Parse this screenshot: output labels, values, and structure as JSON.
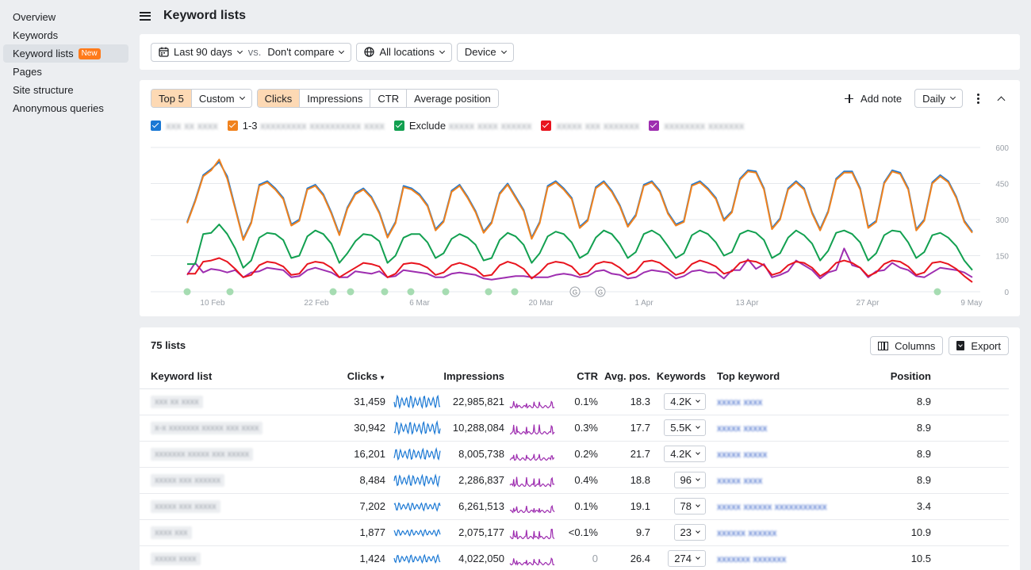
{
  "sidebar": {
    "items": [
      {
        "label": "Overview"
      },
      {
        "label": "Keywords"
      },
      {
        "label": "Keyword lists",
        "badge": "New",
        "active": true
      },
      {
        "label": "Pages"
      },
      {
        "label": "Site structure"
      },
      {
        "label": "Anonymous queries"
      }
    ]
  },
  "header": {
    "title": "Keyword lists"
  },
  "filters": {
    "date_range": "Last 90 days",
    "vs_label": "vs.",
    "compare": "Don't compare",
    "locations": "All locations",
    "device": "Device"
  },
  "chart_toolbar": {
    "top5": "Top 5",
    "custom": "Custom",
    "metrics": [
      "Clicks",
      "Impressions",
      "CTR",
      "Average position"
    ],
    "add_note": "Add note",
    "granularity": "Daily"
  },
  "legend": [
    {
      "name": "Exclude",
      "color": "#12a050"
    }
  ],
  "colors": {
    "blue": "#1a78d4",
    "orange": "#f0821e",
    "green": "#12a050",
    "red": "#e8141e",
    "purple": "#9e2eb0",
    "accent_soft": "#fdd9b4"
  },
  "chart_data": {
    "type": "line",
    "x_tick_labels": [
      "10 Feb",
      "22 Feb",
      "6 Mar",
      "20 Mar",
      "1 Apr",
      "13 Apr",
      "27 Apr",
      "9 May"
    ],
    "y_tick_labels": [
      "0",
      "150",
      "300",
      "450",
      "600"
    ],
    "ylim": [
      0,
      600
    ],
    "grid": true,
    "series": [
      {
        "color": "#1a78d4",
        "values": [
          290,
          380,
          485,
          510,
          540,
          480,
          350,
          220,
          290,
          445,
          460,
          430,
          390,
          280,
          300,
          430,
          445,
          405,
          330,
          240,
          350,
          410,
          430,
          395,
          330,
          230,
          290,
          440,
          430,
          405,
          360,
          260,
          295,
          420,
          445,
          395,
          335,
          250,
          290,
          410,
          450,
          395,
          340,
          225,
          290,
          440,
          460,
          430,
          390,
          270,
          300,
          435,
          460,
          420,
          360,
          275,
          320,
          445,
          460,
          420,
          330,
          280,
          295,
          445,
          460,
          430,
          390,
          300,
          335,
          470,
          505,
          500,
          430,
          265,
          305,
          430,
          460,
          430,
          330,
          260,
          335,
          470,
          500,
          500,
          430,
          270,
          295,
          455,
          505,
          495,
          430,
          260,
          300,
          455,
          485,
          460,
          395,
          295,
          250
        ]
      },
      {
        "color": "#f0821e",
        "values": [
          285,
          375,
          480,
          505,
          550,
          470,
          345,
          215,
          285,
          440,
          455,
          425,
          385,
          275,
          295,
          425,
          440,
          400,
          325,
          235,
          345,
          405,
          425,
          390,
          325,
          225,
          285,
          435,
          425,
          400,
          355,
          255,
          290,
          415,
          440,
          390,
          330,
          245,
          285,
          405,
          445,
          390,
          335,
          220,
          285,
          435,
          455,
          425,
          385,
          265,
          295,
          430,
          455,
          415,
          355,
          270,
          315,
          440,
          455,
          415,
          325,
          275,
          290,
          440,
          455,
          425,
          385,
          295,
          330,
          465,
          500,
          495,
          425,
          260,
          300,
          425,
          455,
          425,
          325,
          255,
          330,
          465,
          495,
          495,
          425,
          265,
          290,
          450,
          500,
          490,
          425,
          255,
          295,
          450,
          480,
          455,
          390,
          290,
          245
        ]
      },
      {
        "color": "#12a050",
        "values": [
          115,
          115,
          240,
          245,
          280,
          240,
          180,
          100,
          130,
          225,
          245,
          240,
          215,
          140,
          150,
          230,
          255,
          240,
          200,
          120,
          160,
          210,
          240,
          235,
          210,
          120,
          150,
          225,
          240,
          240,
          205,
          140,
          160,
          220,
          240,
          225,
          195,
          130,
          140,
          215,
          245,
          230,
          195,
          120,
          160,
          230,
          250,
          240,
          205,
          140,
          160,
          225,
          255,
          240,
          200,
          140,
          165,
          240,
          255,
          235,
          190,
          140,
          160,
          235,
          255,
          240,
          205,
          150,
          165,
          240,
          255,
          245,
          215,
          140,
          160,
          225,
          255,
          235,
          200,
          130,
          170,
          245,
          255,
          240,
          205,
          130,
          160,
          235,
          255,
          250,
          205,
          140,
          165,
          235,
          245,
          225,
          190,
          130,
          90
        ]
      },
      {
        "color": "#e8141e",
        "values": [
          75,
          75,
          125,
          130,
          140,
          125,
          95,
          60,
          70,
          110,
          125,
          120,
          105,
          70,
          75,
          115,
          125,
          120,
          100,
          60,
          80,
          100,
          120,
          115,
          105,
          60,
          75,
          115,
          120,
          115,
          100,
          70,
          80,
          110,
          120,
          110,
          95,
          65,
          70,
          110,
          125,
          115,
          95,
          55,
          80,
          115,
          125,
          120,
          105,
          70,
          80,
          115,
          125,
          120,
          100,
          70,
          85,
          125,
          130,
          120,
          95,
          70,
          80,
          115,
          130,
          120,
          105,
          75,
          85,
          120,
          130,
          125,
          110,
          70,
          80,
          110,
          125,
          120,
          100,
          65,
          85,
          120,
          130,
          120,
          100,
          65,
          80,
          115,
          130,
          125,
          105,
          70,
          80,
          120,
          125,
          115,
          95,
          65,
          40
        ]
      },
      {
        "color": "#9e2eb0",
        "values": [
          70,
          120,
          80,
          95,
          90,
          80,
          90,
          60,
          80,
          85,
          100,
          95,
          90,
          60,
          65,
          90,
          100,
          90,
          80,
          60,
          60,
          85,
          80,
          75,
          85,
          60,
          65,
          90,
          85,
          80,
          75,
          60,
          60,
          75,
          80,
          75,
          70,
          55,
          50,
          55,
          60,
          65,
          65,
          60,
          60,
          60,
          70,
          75,
          70,
          60,
          65,
          85,
          90,
          75,
          70,
          55,
          60,
          80,
          90,
          85,
          80,
          55,
          65,
          85,
          90,
          80,
          80,
          55,
          90,
          90,
          135,
          95,
          115,
          60,
          70,
          85,
          130,
          110,
          90,
          55,
          80,
          90,
          180,
          110,
          100,
          60,
          85,
          90,
          120,
          100,
          90,
          65,
          60,
          80,
          100,
          95,
          90,
          80,
          60
        ]
      }
    ]
  },
  "annotation_markers": [
    {
      "label": "G"
    },
    {
      "label": "G"
    }
  ],
  "table": {
    "count_label": "75 lists",
    "columns_button": "Columns",
    "export_button": "Export",
    "headers": {
      "list": "Keyword list",
      "clicks": "Clicks",
      "impressions": "Impressions",
      "ctr": "CTR",
      "avg_pos": "Avg. pos.",
      "keywords": "Keywords",
      "top_keyword": "Top keyword",
      "position": "Position"
    },
    "rows": [
      {
        "list_name": "",
        "clicks": "31,459",
        "impressions": "22,985,821",
        "ctr": "0.1%",
        "avg_pos": "18.3",
        "keywords": "4.2K",
        "top_keyword": "",
        "position": "8.9"
      },
      {
        "list_name": "",
        "clicks": "30,942",
        "impressions": "10,288,084",
        "ctr": "0.3%",
        "avg_pos": "17.7",
        "keywords": "5.5K",
        "top_keyword": "",
        "position": "8.9"
      },
      {
        "list_name": "",
        "clicks": "16,201",
        "impressions": "8,005,738",
        "ctr": "0.2%",
        "avg_pos": "21.7",
        "keywords": "4.2K",
        "top_keyword": "",
        "position": "8.9"
      },
      {
        "list_name": "",
        "clicks": "8,484",
        "impressions": "2,286,837",
        "ctr": "0.4%",
        "avg_pos": "18.8",
        "keywords": "96",
        "top_keyword": "",
        "position": "8.9"
      },
      {
        "list_name": "",
        "clicks": "7,202",
        "impressions": "6,261,513",
        "ctr": "0.1%",
        "avg_pos": "19.1",
        "keywords": "78",
        "top_keyword": "",
        "position": "3.4"
      },
      {
        "list_name": "",
        "clicks": "1,877",
        "impressions": "2,075,177",
        "ctr": "<0.1%",
        "avg_pos": "9.7",
        "keywords": "23",
        "top_keyword": "",
        "position": "10.9"
      },
      {
        "list_name": "",
        "clicks": "1,424",
        "impressions": "4,022,050",
        "ctr": "0",
        "avg_pos": "26.4",
        "keywords": "274",
        "top_keyword": "",
        "position": "10.5"
      }
    ]
  }
}
